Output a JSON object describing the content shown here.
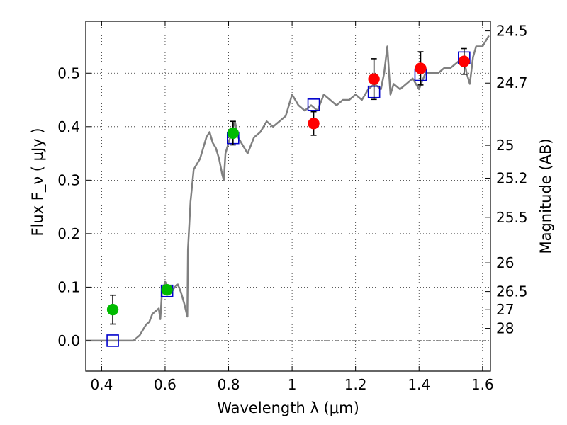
{
  "chart_data": {
    "type": "scatter",
    "title": "",
    "xlabel": "Wavelength  λ (μm)",
    "ylabel": "Flux  F_ν  ( μJy )",
    "y2label": "Magnitude (AB)",
    "xlim": [
      0.35,
      1.625
    ],
    "ylim": [
      -0.057,
      0.597
    ],
    "grid": true,
    "x_ticks": [
      0.4,
      0.6,
      0.8,
      1.0,
      1.2,
      1.4,
      1.6
    ],
    "x_tick_labels": [
      "0.4",
      "0.6",
      "0.8",
      "1",
      "1.2",
      "1.4",
      "1.6"
    ],
    "y_ticks": [
      0.0,
      0.1,
      0.2,
      0.3,
      0.4,
      0.5
    ],
    "y_tick_labels": [
      "0.0",
      "0.1",
      "0.2",
      "0.3",
      "0.4",
      "0.5"
    ],
    "mag_ticks": [
      {
        "label": "24.5",
        "flux": 0.579
      },
      {
        "label": "24.7",
        "flux": 0.4815
      },
      {
        "label": "25",
        "flux": 0.3652
      },
      {
        "label": "25.2",
        "flux": 0.3038
      },
      {
        "label": "25.5",
        "flux": 0.2305
      },
      {
        "label": "26",
        "flux": 0.1454
      },
      {
        "label": "26.5",
        "flux": 0.0918
      },
      {
        "label": "27",
        "flux": 0.0579
      },
      {
        "label": "28",
        "flux": 0.023
      }
    ],
    "series": [
      {
        "kind": "model_spectrum",
        "color": "#808080",
        "x": [
          0.35,
          0.4,
          0.45,
          0.5,
          0.52,
          0.54,
          0.55,
          0.56,
          0.57,
          0.58,
          0.585,
          0.59,
          0.6,
          0.61,
          0.62,
          0.63,
          0.64,
          0.65,
          0.66,
          0.67,
          0.672,
          0.68,
          0.69,
          0.7,
          0.71,
          0.72,
          0.73,
          0.74,
          0.75,
          0.76,
          0.77,
          0.78,
          0.785,
          0.79,
          0.8,
          0.81,
          0.82,
          0.83,
          0.84,
          0.85,
          0.86,
          0.88,
          0.9,
          0.92,
          0.94,
          0.96,
          0.98,
          1.0,
          1.02,
          1.04,
          1.06,
          1.08,
          1.1,
          1.12,
          1.14,
          1.16,
          1.18,
          1.2,
          1.22,
          1.24,
          1.26,
          1.28,
          1.29,
          1.3,
          1.31,
          1.32,
          1.34,
          1.36,
          1.38,
          1.4,
          1.42,
          1.44,
          1.46,
          1.48,
          1.5,
          1.52,
          1.54,
          1.55,
          1.56,
          1.57,
          1.58,
          1.6,
          1.62
        ],
        "y": [
          0.0,
          0.0,
          0.0,
          0.0,
          0.01,
          0.03,
          0.035,
          0.05,
          0.055,
          0.06,
          0.04,
          0.09,
          0.11,
          0.1,
          0.09,
          0.1,
          0.105,
          0.09,
          0.07,
          0.045,
          0.17,
          0.26,
          0.32,
          0.33,
          0.34,
          0.36,
          0.38,
          0.39,
          0.37,
          0.36,
          0.34,
          0.31,
          0.3,
          0.35,
          0.37,
          0.39,
          0.41,
          0.38,
          0.37,
          0.36,
          0.35,
          0.38,
          0.39,
          0.41,
          0.4,
          0.41,
          0.42,
          0.46,
          0.44,
          0.43,
          0.44,
          0.43,
          0.46,
          0.45,
          0.44,
          0.45,
          0.45,
          0.46,
          0.45,
          0.47,
          0.48,
          0.47,
          0.5,
          0.55,
          0.46,
          0.48,
          0.47,
          0.48,
          0.49,
          0.47,
          0.5,
          0.5,
          0.5,
          0.51,
          0.51,
          0.52,
          0.53,
          0.5,
          0.48,
          0.53,
          0.55,
          0.55,
          0.57
        ]
      },
      {
        "kind": "model_photometry",
        "marker": "open-square",
        "color": "#0000cc",
        "x": [
          0.435,
          0.606,
          0.814,
          1.068,
          1.258,
          1.405,
          1.542
        ],
        "y": [
          0.0,
          0.093,
          0.379,
          0.441,
          0.465,
          0.497,
          0.529
        ]
      },
      {
        "kind": "observed_green",
        "marker": "filled-circle",
        "color": "#00bb00",
        "x": [
          0.435,
          0.606,
          0.814
        ],
        "y": [
          0.058,
          0.095,
          0.388
        ],
        "err": [
          0.027,
          0.008,
          0.022
        ]
      },
      {
        "kind": "observed_red",
        "marker": "filled-circle",
        "color": "#ff0000",
        "x": [
          1.068,
          1.258,
          1.405,
          1.542
        ],
        "y": [
          0.406,
          0.489,
          0.509,
          0.522
        ],
        "err": [
          0.022,
          0.038,
          0.031,
          0.024
        ]
      }
    ]
  }
}
